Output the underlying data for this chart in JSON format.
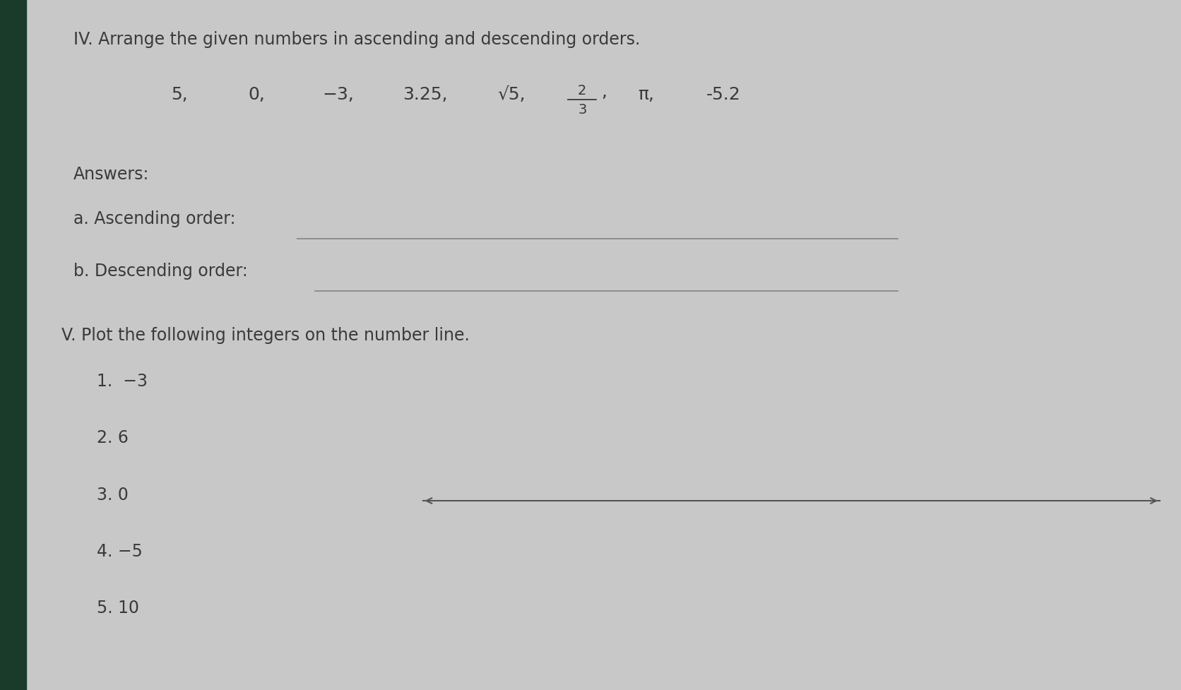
{
  "background_color": "#c8c8c8",
  "page_color": "#e0e0dc",
  "left_strip_color": "#1a3a2a",
  "title_iv": "IV. Arrange the given numbers in ascending and descending orders.",
  "fraction_num": "2",
  "fraction_den": "3",
  "pi_text": "π,",
  "neg52_text": "-5.2",
  "answers_label": "Answers:",
  "ascending_label": "a. Ascending order:",
  "descending_label": "b. Descending order:",
  "title_v": "V. Plot the following integers on the number line.",
  "list_items": [
    "1.  −3",
    "2. 6",
    "3. 0",
    "4. −5",
    "5. 10"
  ],
  "arrow_color": "#555555",
  "text_color": "#3a3a3a",
  "line_color": "#888888",
  "title_fontsize": 17,
  "body_fontsize": 17,
  "small_fontsize": 14
}
